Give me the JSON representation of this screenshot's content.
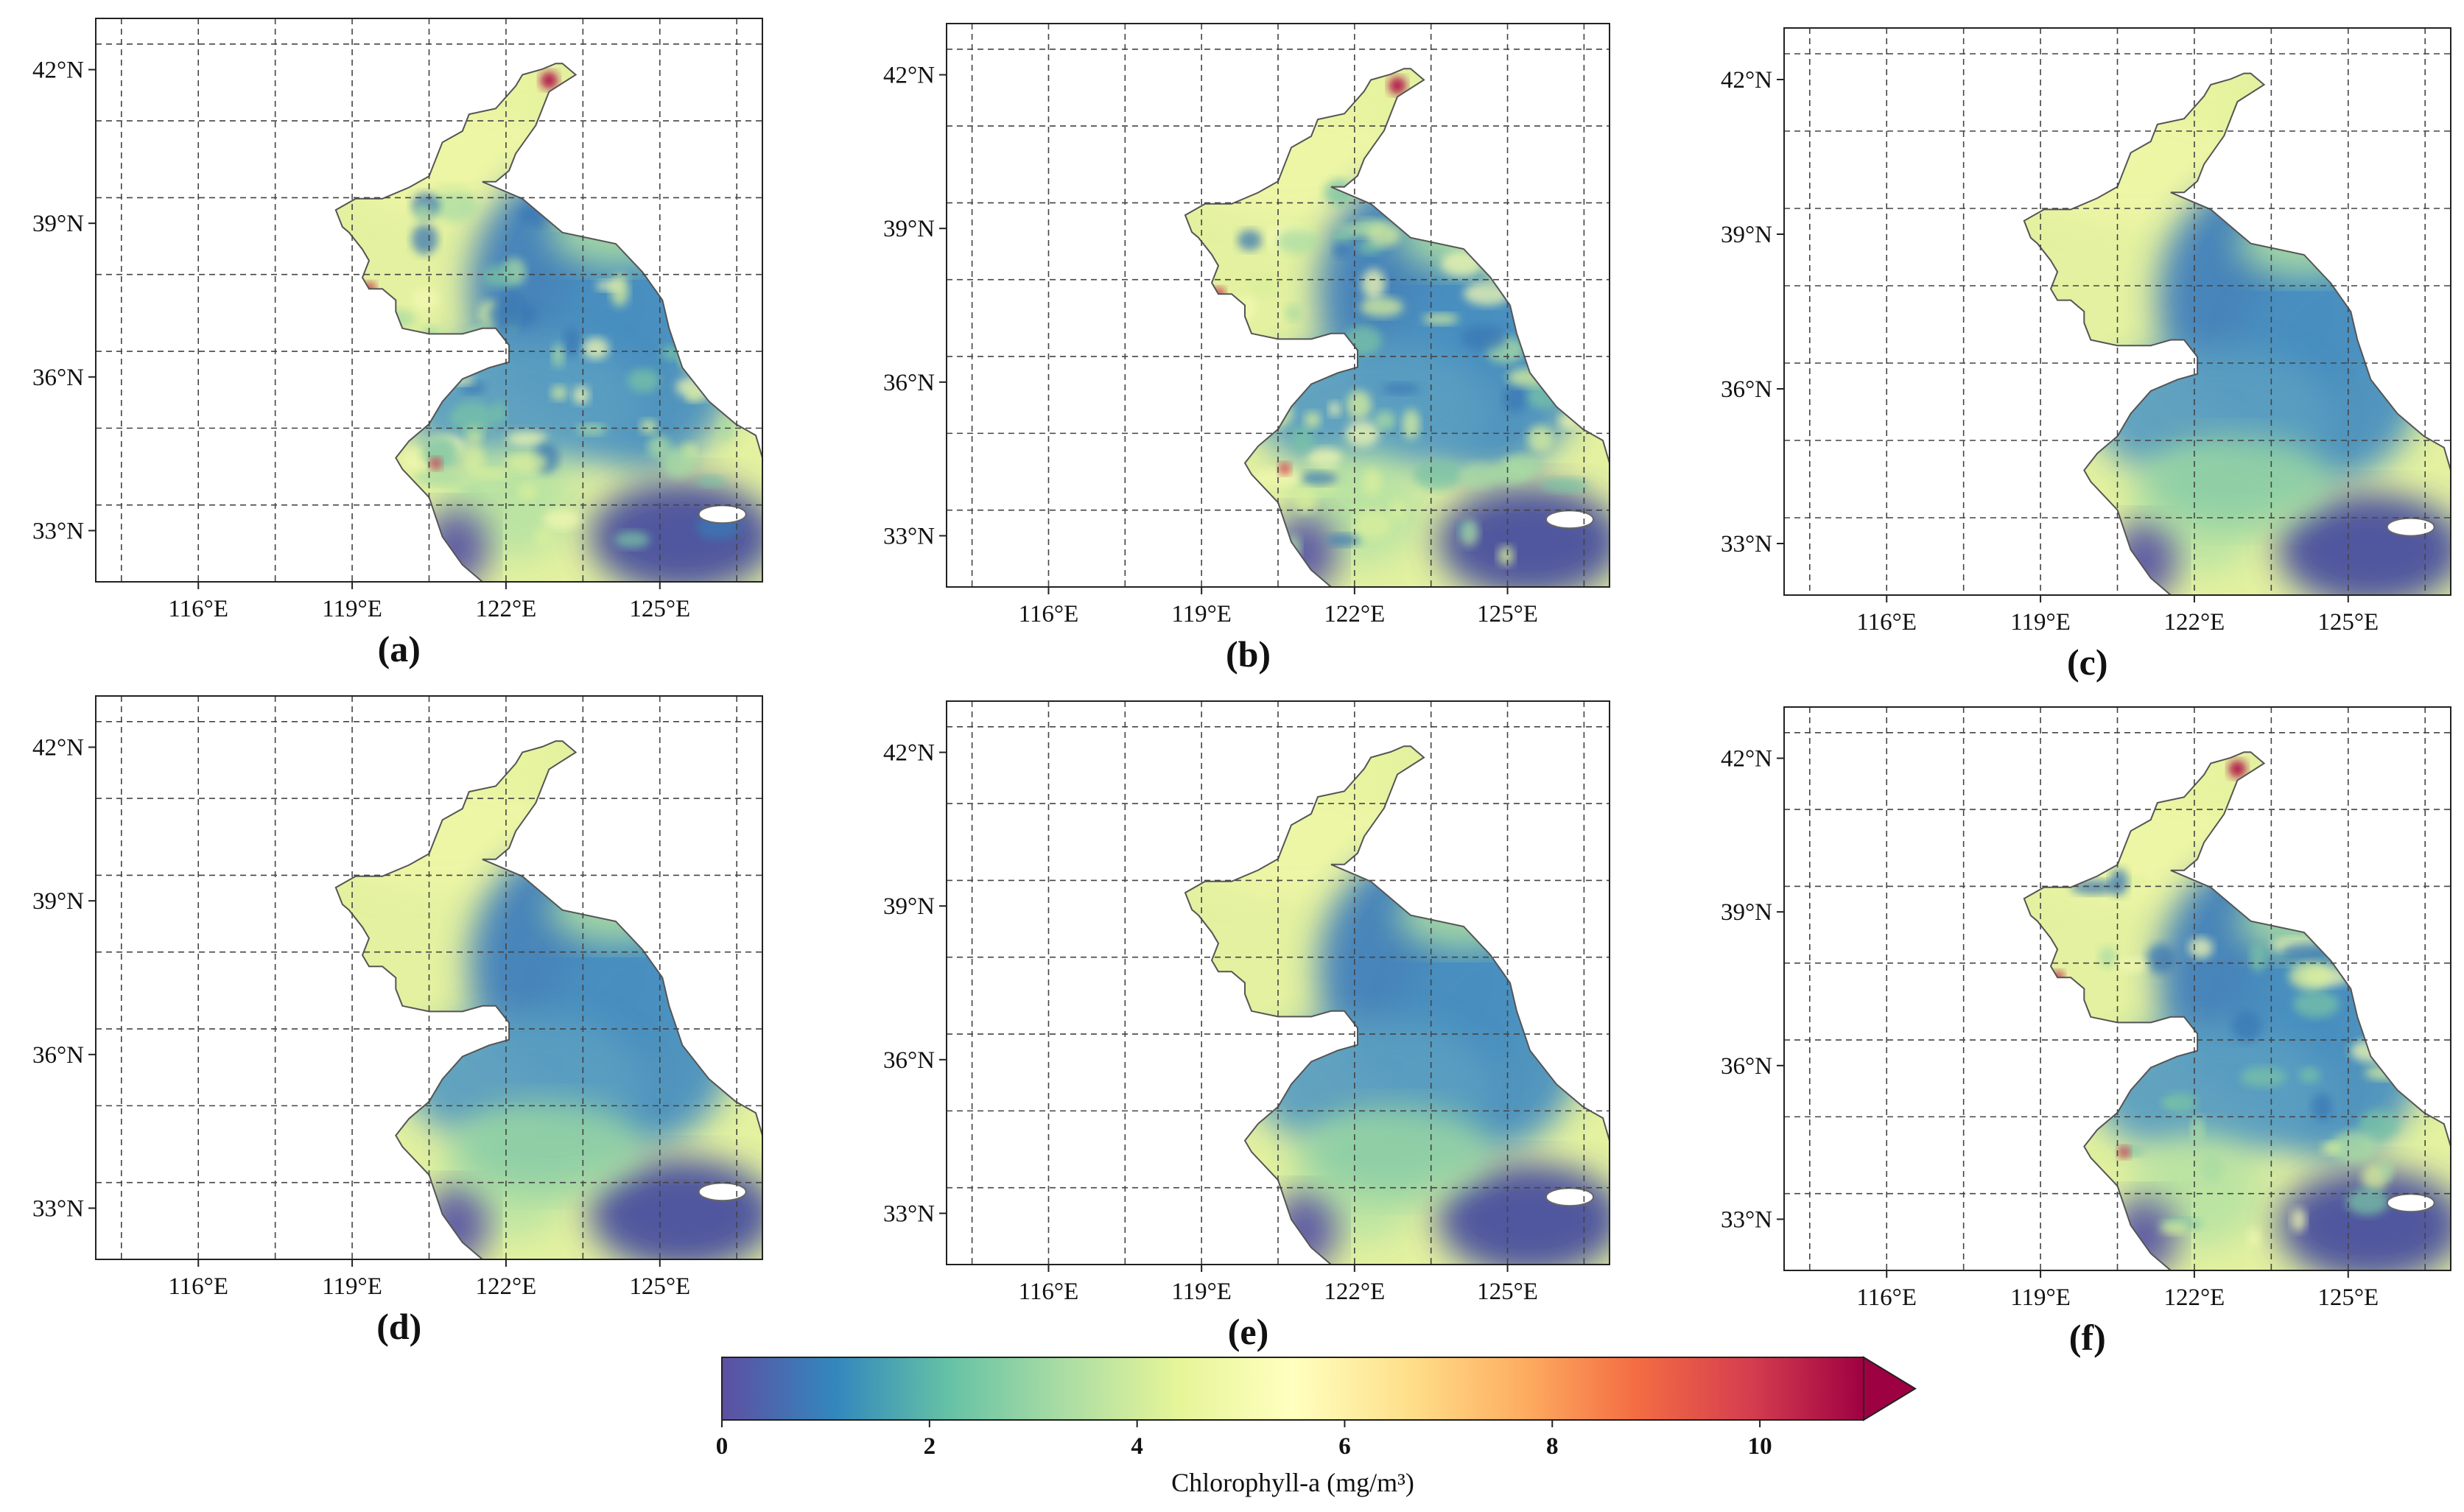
{
  "figure": {
    "panels": [
      {
        "label": "(a)",
        "variant": "noisy",
        "hotspots": true
      },
      {
        "label": "(b)",
        "variant": "noisy",
        "hotspots": true
      },
      {
        "label": "(c)",
        "variant": "smooth",
        "hotspots": false
      },
      {
        "label": "(d)",
        "variant": "smooth",
        "hotspots": false
      },
      {
        "label": "(e)",
        "variant": "smooth",
        "hotspots": false
      },
      {
        "label": "(f)",
        "variant": "patchy",
        "hotspots": true
      }
    ],
    "lat_ticks": [
      "42°N",
      "39°N",
      "36°N",
      "33°N"
    ],
    "lon_ticks": [
      "116°E",
      "119°E",
      "122°E",
      "125°E"
    ],
    "map_extent": {
      "lon": [
        114,
        127
      ],
      "lat": [
        32,
        43
      ]
    },
    "colorbar": {
      "title": "Chlorophyll-a (mg/m³)",
      "ticks": [
        "0",
        "2",
        "4",
        "6",
        "8",
        "10"
      ],
      "range": [
        0,
        11
      ],
      "extend": "max",
      "colormap": "Spectral_r",
      "colors": [
        "#5e4fa2",
        "#3288bd",
        "#66c2a5",
        "#abdda4",
        "#e6f598",
        "#ffffbf",
        "#fee08b",
        "#fdae61",
        "#f46d43",
        "#d53e4f",
        "#9e0142"
      ]
    }
  }
}
